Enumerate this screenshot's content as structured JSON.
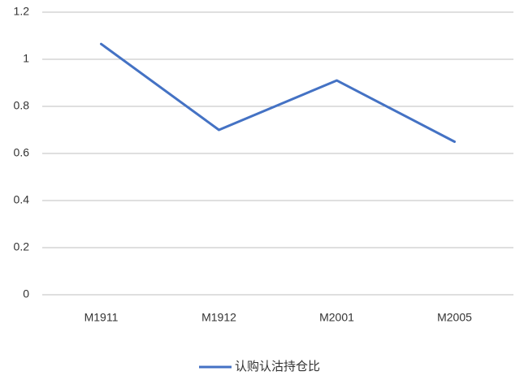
{
  "chart_data": {
    "type": "line",
    "categories": [
      "M1911",
      "M1912",
      "M2001",
      "M2005"
    ],
    "series": [
      {
        "name": "认购认沽持仓比",
        "color": "#4472c4",
        "values": [
          1.065,
          0.7,
          0.91,
          0.65
        ]
      }
    ],
    "ylim": [
      0,
      1.2
    ],
    "yticks": [
      0,
      0.2,
      0.4,
      0.6,
      0.8,
      1,
      1.2
    ],
    "grid": true,
    "legend": "bottom"
  }
}
